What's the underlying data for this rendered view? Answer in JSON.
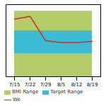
{
  "chart_data": {
    "type": "line",
    "categories": [
      "7/15",
      "7/22",
      "7/29",
      "8/5",
      "8/12",
      "8/19"
    ],
    "series": [
      {
        "name": "BMI Range",
        "type": "area",
        "color": "#b5cc6a",
        "low": [
          0,
          0,
          0,
          0,
          0,
          0
        ],
        "high": [
          100,
          100,
          100,
          100,
          100,
          100
        ]
      },
      {
        "name": "Target Range",
        "type": "area",
        "color": "#3bbcd4",
        "low": [
          35,
          35,
          35,
          35,
          35,
          35
        ],
        "high": [
          70,
          70,
          70,
          70,
          70,
          70
        ]
      },
      {
        "name": "We",
        "type": "line",
        "color": "#cc3322",
        "values": [
          88,
          92,
          55,
          52,
          52,
          54
        ]
      }
    ],
    "ylim": [
      0,
      110
    ],
    "yticks": [],
    "tick_labels": "x",
    "grid": false,
    "legend": "bottom"
  }
}
